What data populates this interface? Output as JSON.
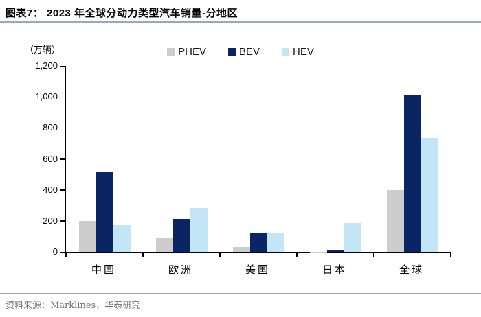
{
  "header": {
    "title": "图表7：  2023 年全球分动力类型汽车销量-分地区"
  },
  "unit_label": "（万辆）",
  "footer": {
    "source": "资料来源：Marklines，华泰研究"
  },
  "colors": {
    "phev": "#cdcdcd",
    "bev": "#0b2464",
    "hev": "#c3e6f7",
    "rule": "#93abc1",
    "axis": "#000000",
    "footer_text": "#737373"
  },
  "chart_data": {
    "type": "bar",
    "title": "2023 年全球分动力类型汽车销量-分地区",
    "unit": "万辆",
    "categories": [
      "中国",
      "欧洲",
      "美国",
      "日本",
      "全球"
    ],
    "series": [
      {
        "name": "PHEV",
        "color": "#cdcdcd",
        "values": [
          200,
          88,
          30,
          2,
          400
        ]
      },
      {
        "name": "BEV",
        "color": "#0b2464",
        "values": [
          515,
          212,
          120,
          9,
          1010
        ]
      },
      {
        "name": "HEV",
        "color": "#c3e6f7",
        "values": [
          172,
          285,
          118,
          188,
          735
        ]
      }
    ],
    "ylim": [
      0,
      1200
    ],
    "ytick_values": [
      0,
      200,
      400,
      600,
      800,
      1000,
      1200
    ],
    "ytick_labels": [
      "0",
      "200",
      "400",
      "600",
      "800",
      "1,000",
      "1,200"
    ],
    "grid": false,
    "legend_position": "top-center"
  }
}
